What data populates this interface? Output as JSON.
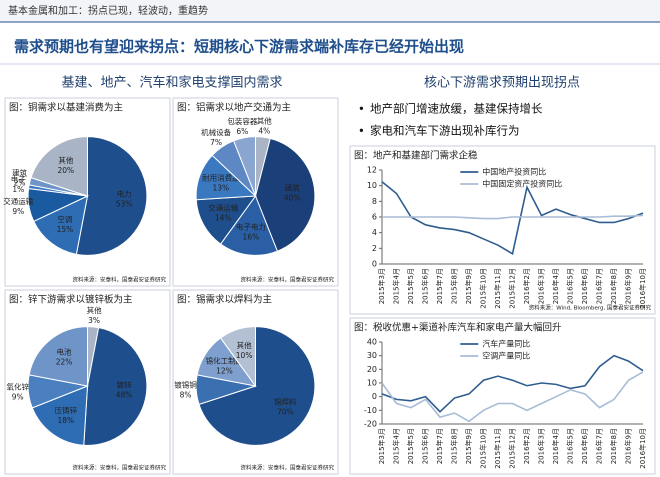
{
  "header": {
    "section": "基本金属和加工：拐点已现，轻波动，重趋势",
    "title": "需求预期也有望迎来拐点：短期核心下游需求端补库存已经开始出现"
  },
  "left_heading": "基建、地产、汽车和家电支撑国内需求",
  "right_heading": "核心下游需求预期出现拐点",
  "bullets": [
    "地产部门增速放缓，基建保持增长",
    "家电和汽车下游出现补库行为"
  ],
  "chart_data": [
    {
      "type": "pie",
      "title": "图：铜需求以基建消费为主",
      "categories": [
        "电力",
        "空调",
        "交通运输",
        "电子",
        "建筑",
        "其他"
      ],
      "values": [
        53,
        15,
        9,
        1,
        2,
        20
      ],
      "value_labels": [
        "53%",
        "15%",
        "9%",
        "1%",
        "2%",
        "20%"
      ],
      "colors": [
        "#1f4e8c",
        "#2e6db4",
        "#1a5aa0",
        "#3a78c0",
        "#6f94c8",
        "#a9b4c6"
      ],
      "source": "资料来源：安泰科，国泰君安证券研究"
    },
    {
      "type": "pie",
      "title": "图：铝需求以地产交通为主",
      "categories": [
        "其他",
        "建筑",
        "电子电力",
        "交通运输",
        "耐用消费品",
        "机械设备",
        "包装容器"
      ],
      "values": [
        4,
        40,
        16,
        14,
        13,
        7,
        6
      ],
      "value_labels": [
        "4%",
        "40%",
        "16%",
        "14%",
        "13%",
        "7%",
        "6%"
      ],
      "colors": [
        "#a9b4c6",
        "#1b3f78",
        "#2a5fa6",
        "#1f4e8c",
        "#3a78c0",
        "#5d88c4",
        "#8aa6d0"
      ],
      "source": "资料来源：安泰科，国泰君安证券研究"
    },
    {
      "type": "pie",
      "title": "图：锌下游需求以镀锌板为主",
      "categories": [
        "其他",
        "镀锌",
        "压铸锌",
        "氧化锌",
        "电池"
      ],
      "values": [
        3,
        48,
        18,
        9,
        22
      ],
      "value_labels": [
        "3%",
        "48%",
        "18%",
        "9%",
        "22%"
      ],
      "colors": [
        "#a9b4c6",
        "#1f4e8c",
        "#2e6db4",
        "#4a7fc0",
        "#6f94c8"
      ],
      "source": "资料来源：安泰科，国泰君安证券研究"
    },
    {
      "type": "pie",
      "title": "图：锡需求以焊料为主",
      "categories": [
        "锡焊料",
        "镀锡铜",
        "锡化工制品",
        "其他"
      ],
      "values": [
        70,
        8,
        12,
        10
      ],
      "value_labels": [
        "70%",
        "8%",
        "12%",
        "10%"
      ],
      "colors": [
        "#1f4e8c",
        "#3a6fb0",
        "#7f9fcf",
        "#b3bfd2"
      ],
      "source": "资料来源：安泰科，国泰君安证券研究"
    },
    {
      "type": "line",
      "title": "图：地产和基建部门需求企稳",
      "x": [
        "2015年3月",
        "2015年4月",
        "2015年5月",
        "2015年6月",
        "2015年7月",
        "2015年8月",
        "2015年9月",
        "2015年10月",
        "2015年11月",
        "2015年12月",
        "2016年2月",
        "2016年3月",
        "2016年4月",
        "2016年5月",
        "2016年6月",
        "2016年7月",
        "2016年8月",
        "2016年9月",
        "2016年10月"
      ],
      "series": [
        {
          "name": "中国地产投资同比",
          "color": "#2f5d8f",
          "values": [
            10.5,
            9,
            6,
            5,
            4.6,
            4.4,
            4,
            3.2,
            2.4,
            1.3,
            9.8,
            6.2,
            7,
            6.3,
            5.8,
            5.3,
            5.3,
            5.8,
            6.5
          ]
        },
        {
          "name": "中国固定资产投资同比",
          "color": "#a9bcd6",
          "values": [
            6,
            6,
            6,
            6,
            6,
            6,
            5.9,
            5.8,
            5.8,
            6,
            6,
            6,
            6,
            6,
            6,
            6,
            6.1,
            6.1,
            6.2
          ]
        }
      ],
      "ylim": [
        0,
        12
      ],
      "yticks": [
        0,
        2,
        4,
        6,
        8,
        10,
        12
      ],
      "legend": "top",
      "source": "资料来源：Wind, Bloomberg, 国泰君安证券研究"
    },
    {
      "type": "line",
      "title": "图：税收优惠+渠道补库汽车和家电产量大幅回升",
      "x": [
        "2015年3月",
        "2015年4月",
        "2015年5月",
        "2015年6月",
        "2015年7月",
        "2015年8月",
        "2015年9月",
        "2015年10月",
        "2015年11月",
        "2015年12月",
        "2016年2月",
        "2016年3月",
        "2016年4月",
        "2016年5月",
        "2016年6月",
        "2016年7月",
        "2016年8月",
        "2016年9月",
        "2016年10月"
      ],
      "series": [
        {
          "name": "汽车产量同比",
          "color": "#2f5d8f",
          "values": [
            2,
            -2,
            -3,
            0,
            -11,
            -1,
            2,
            12,
            15,
            12,
            8,
            10,
            9,
            6,
            8,
            22,
            30,
            26,
            19
          ]
        },
        {
          "name": "空调产量同比",
          "color": "#a9bcd6",
          "values": [
            10,
            -5,
            -8,
            -2,
            -15,
            -12,
            -18,
            -10,
            -5,
            -5,
            -10,
            -5,
            0,
            5,
            2,
            -8,
            -2,
            12,
            18
          ]
        }
      ],
      "ylim": [
        -20,
        40
      ],
      "yticks": [
        -20,
        -10,
        0,
        10,
        20,
        30,
        40
      ],
      "legend": "top"
    }
  ]
}
